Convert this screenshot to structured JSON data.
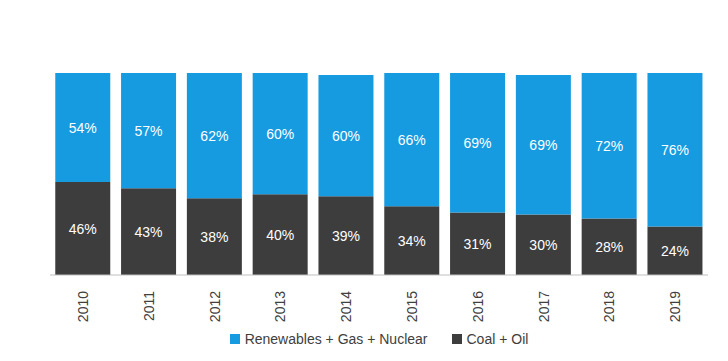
{
  "chart_data": {
    "type": "bar",
    "stacked": true,
    "data_labels": true,
    "tick_labels": "x",
    "legend": "bottom",
    "categories": [
      "2010",
      "2011",
      "2012",
      "2013",
      "2014",
      "2015",
      "2016",
      "2017",
      "2018",
      "2019"
    ],
    "ylim": [
      0,
      100
    ],
    "series": [
      {
        "name": "Renewables + Gas + Nuclear",
        "color": "#169be0",
        "values": [
          54,
          57,
          62,
          60,
          60,
          66,
          69,
          69,
          72,
          76
        ],
        "value_labels": [
          "54%",
          "57%",
          "62%",
          "60%",
          "60%",
          "66%",
          "69%",
          "69%",
          "72%",
          "76%"
        ]
      },
      {
        "name": "Coal + Oil",
        "color": "#3d3d3d",
        "values": [
          46,
          43,
          38,
          40,
          39,
          34,
          31,
          30,
          28,
          24
        ],
        "value_labels": [
          "46%",
          "43%",
          "38%",
          "40%",
          "39%",
          "34%",
          "31%",
          "30%",
          "28%",
          "24%"
        ]
      }
    ]
  }
}
